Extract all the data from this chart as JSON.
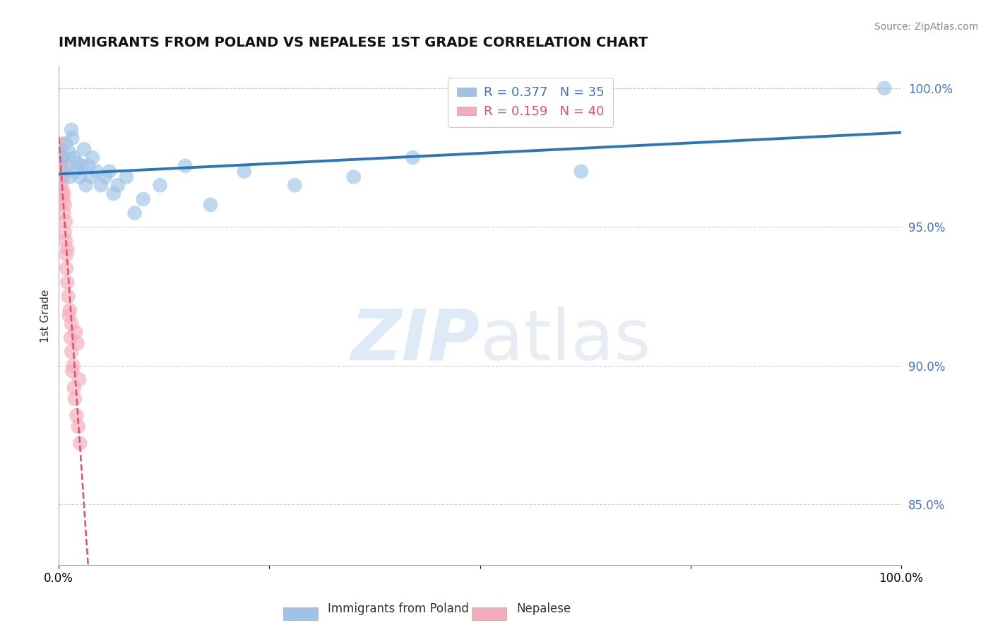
{
  "title": "IMMIGRANTS FROM POLAND VS NEPALESE 1ST GRADE CORRELATION CHART",
  "source": "Source: ZipAtlas.com",
  "ylabel": "1st Grade",
  "r_blue": 0.377,
  "n_blue": 35,
  "r_pink": 0.159,
  "n_pink": 40,
  "xlim": [
    0.0,
    1.0
  ],
  "ylim": [
    0.828,
    1.008
  ],
  "yticks": [
    0.85,
    0.9,
    0.95,
    1.0
  ],
  "ytick_labels": [
    "85.0%",
    "90.0%",
    "95.0%",
    "100.0%"
  ],
  "blue_color": "#9DC3E6",
  "pink_color": "#F4ABBB",
  "blue_line_color": "#2E75B6",
  "pink_line_color": "#E05070",
  "watermark_zip": "ZIP",
  "watermark_atlas": "atlas",
  "legend_label_blue": "Immigrants from Poland",
  "legend_label_pink": "Nepalese",
  "blue_x": [
    0.005,
    0.008,
    0.01,
    0.012,
    0.013,
    0.015,
    0.016,
    0.018,
    0.02,
    0.022,
    0.025,
    0.028,
    0.03,
    0.032,
    0.035,
    0.038,
    0.04,
    0.045,
    0.05,
    0.055,
    0.06,
    0.065,
    0.07,
    0.08,
    0.09,
    0.1,
    0.12,
    0.15,
    0.18,
    0.22,
    0.28,
    0.35,
    0.42,
    0.62,
    0.98
  ],
  "blue_y": [
    0.975,
    0.98,
    0.972,
    0.977,
    0.968,
    0.985,
    0.982,
    0.975,
    0.97,
    0.973,
    0.968,
    0.972,
    0.978,
    0.965,
    0.972,
    0.968,
    0.975,
    0.97,
    0.965,
    0.968,
    0.97,
    0.962,
    0.965,
    0.968,
    0.955,
    0.96,
    0.965,
    0.972,
    0.958,
    0.97,
    0.965,
    0.968,
    0.975,
    0.97,
    1.0
  ],
  "pink_x": [
    0.001,
    0.001,
    0.002,
    0.002,
    0.002,
    0.003,
    0.003,
    0.003,
    0.004,
    0.004,
    0.004,
    0.005,
    0.005,
    0.005,
    0.006,
    0.006,
    0.007,
    0.007,
    0.008,
    0.008,
    0.009,
    0.009,
    0.01,
    0.01,
    0.011,
    0.012,
    0.013,
    0.014,
    0.015,
    0.015,
    0.016,
    0.017,
    0.018,
    0.019,
    0.02,
    0.021,
    0.022,
    0.023,
    0.024,
    0.025
  ],
  "pink_y": [
    0.978,
    0.975,
    0.98,
    0.972,
    0.968,
    0.975,
    0.97,
    0.965,
    0.972,
    0.968,
    0.963,
    0.96,
    0.968,
    0.975,
    0.955,
    0.962,
    0.948,
    0.958,
    0.945,
    0.952,
    0.94,
    0.935,
    0.93,
    0.942,
    0.925,
    0.918,
    0.92,
    0.91,
    0.905,
    0.915,
    0.898,
    0.9,
    0.892,
    0.888,
    0.912,
    0.882,
    0.908,
    0.878,
    0.895,
    0.872
  ]
}
